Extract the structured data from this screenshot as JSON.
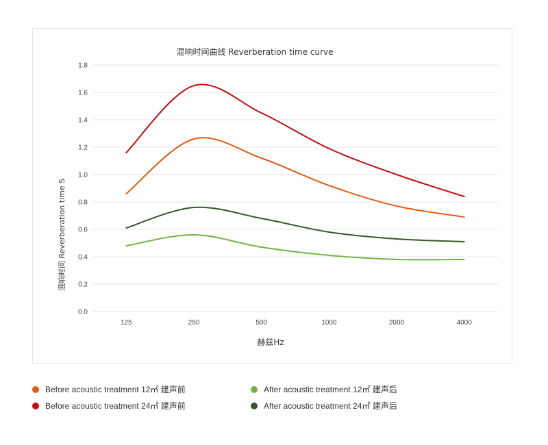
{
  "chart_data": {
    "type": "line",
    "title": "混响时间曲线 Reverberation time curve",
    "xlabel": "赫兹Hz",
    "ylabel": "混响时间  Reverberation time  S",
    "categories": [
      "125",
      "250",
      "500",
      "1000",
      "2000",
      "4000"
    ],
    "ylim": [
      0,
      1.8
    ],
    "yticks": [
      "0.0",
      "0.2",
      "0.4",
      "0.6",
      "0.8",
      "1.0",
      "1.2",
      "1.4",
      "1.6",
      "1.8"
    ],
    "grid": true,
    "legend_position": "bottom",
    "series": [
      {
        "name": "Before acoustic treatment 12㎡  建声前",
        "color": "#e35a12",
        "values": [
          0.86,
          1.26,
          1.12,
          0.92,
          0.77,
          0.69
        ]
      },
      {
        "name": "Before acoustic treatment 24㎡  建声前",
        "color": "#c00e0e",
        "values": [
          1.16,
          1.65,
          1.45,
          1.19,
          1.0,
          0.84
        ]
      },
      {
        "name": "After acoustic treatment 12㎡  建声后",
        "color": "#6fb440",
        "values": [
          0.48,
          0.56,
          0.47,
          0.41,
          0.38,
          0.38
        ]
      },
      {
        "name": "After acoustic treatment 24㎡  建声后",
        "color": "#375625",
        "values": [
          0.61,
          0.76,
          0.68,
          0.58,
          0.53,
          0.51
        ]
      }
    ]
  }
}
